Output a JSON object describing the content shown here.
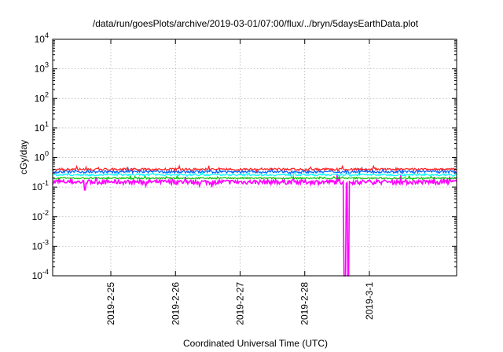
{
  "chart_data": {
    "type": "line",
    "title": "/data/run/goesPlots/archive/2019-03-01/07:00/flux/../bryn/5daysEarthData.plot",
    "xlabel": "Coordinated Universal Time (UTC)",
    "ylabel": "cGy/day",
    "yscale": "log",
    "ylim": [
      0.0001,
      10000
    ],
    "xlim": [
      24.1,
      30.35
    ],
    "y_ticks": [
      {
        "base": "10",
        "exp": "4",
        "value": 10000
      },
      {
        "base": "10",
        "exp": "3",
        "value": 1000
      },
      {
        "base": "10",
        "exp": "2",
        "value": 100
      },
      {
        "base": "10",
        "exp": "1",
        "value": 10
      },
      {
        "base": "10",
        "exp": "0",
        "value": 1
      },
      {
        "base": "10",
        "exp": "-1",
        "value": 0.1
      },
      {
        "base": "10",
        "exp": "-2",
        "value": 0.01
      },
      {
        "base": "10",
        "exp": "-3",
        "value": 0.001
      },
      {
        "base": "10",
        "exp": "-4",
        "value": 0.0001
      }
    ],
    "x_ticks": [
      {
        "label": "2019-2-25",
        "value": 25
      },
      {
        "label": "2019-2-26",
        "value": 26
      },
      {
        "label": "2019-2-27",
        "value": 27
      },
      {
        "label": "2019-2-28",
        "value": 28
      },
      {
        "label": "2019-3-1",
        "value": 29
      }
    ],
    "grid": true,
    "legend": "none",
    "series": [
      {
        "color": "#ff00ff",
        "base": 0.15,
        "noise": 0.35,
        "dips": [
          [
            24.6,
            0.08
          ],
          [
            28.62,
            5e-05
          ],
          [
            28.67,
            5e-05
          ]
        ]
      },
      {
        "color": "#00c000",
        "base": 0.2,
        "noise": 0.12
      },
      {
        "color": "#00ffff",
        "base": 0.26,
        "noise": 0.15
      },
      {
        "color": "#0060ff",
        "base": 0.33,
        "noise": 0.2
      },
      {
        "color": "#ff2020",
        "base": 0.4,
        "noise": 0.18
      }
    ]
  }
}
